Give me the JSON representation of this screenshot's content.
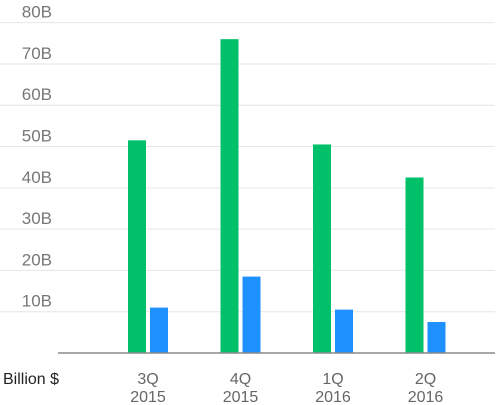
{
  "chart_data": {
    "type": "bar",
    "ylabel": "Billion $",
    "categories": [
      [
        "3Q",
        "2015"
      ],
      [
        "4Q",
        "2015"
      ],
      [
        "1Q",
        "2016"
      ],
      [
        "2Q",
        "2016"
      ]
    ],
    "series": [
      {
        "values": [
          51.5,
          76,
          50.5,
          42.5
        ],
        "color": "#00c06a"
      },
      {
        "values": [
          11,
          18.5,
          10.5,
          7.5
        ],
        "color": "#1e90ff"
      }
    ],
    "ylim": [
      0,
      85
    ],
    "yticks": [
      {
        "value": 10,
        "label": "10B"
      },
      {
        "value": 20,
        "label": "20B"
      },
      {
        "value": 30,
        "label": "30B"
      },
      {
        "value": 40,
        "label": "40B"
      },
      {
        "value": 50,
        "label": "50B"
      },
      {
        "value": 60,
        "label": "60B"
      },
      {
        "value": 70,
        "label": "70B"
      },
      {
        "value": 80,
        "label": "80B"
      }
    ],
    "grid": true,
    "colors": {
      "grid": "#e6e6e6",
      "axis": "#8a8a8a"
    }
  }
}
